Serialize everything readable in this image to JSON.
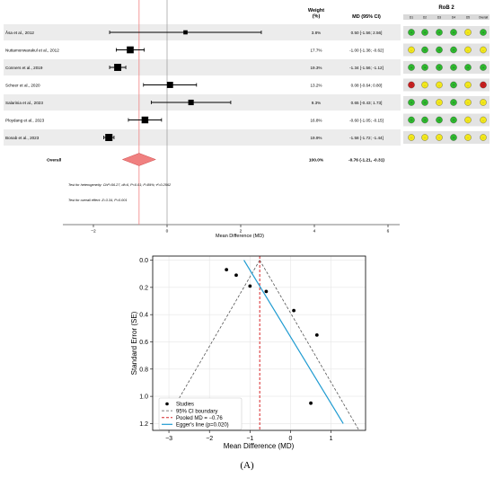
{
  "chart_data": [
    {
      "type": "forest",
      "columns": {
        "weight": "Weight\n(%)",
        "md": "MD (95% CI)",
        "rob": "RoB 2"
      },
      "rob_domains": [
        "D1",
        "D2",
        "D3",
        "D4",
        "D5",
        "Overall"
      ],
      "studies": [
        {
          "label": "Åsa et al., 2012",
          "md": 0.5,
          "lo": -1.56,
          "hi": 2.56,
          "weight": 3.8,
          "weight_text": "3.8%",
          "ci_text": "0.50 [-1.56; 2.56]",
          "rob": [
            "low",
            "low",
            "low",
            "low",
            "some",
            "low"
          ]
        },
        {
          "label": "Nuttamonwarakul et al., 2012",
          "md": -1.0,
          "lo": -1.38,
          "hi": -0.62,
          "weight": 17.7,
          "weight_text": "17.7%",
          "ci_text": "-1.00 [-1.38; -0.62]",
          "rob": [
            "some",
            "low",
            "low",
            "low",
            "some",
            "some"
          ]
        },
        {
          "label": "Conners et al., 2019",
          "md": -1.34,
          "lo": -1.56,
          "hi": -1.12,
          "weight": 19.3,
          "weight_text": "19.3%",
          "ci_text": "-1.34 [-1.56; -1.12]",
          "rob": [
            "low",
            "low",
            "low",
            "low",
            "low",
            "low"
          ]
        },
        {
          "label": "Scheer et al., 2020",
          "md": 0.08,
          "lo": -0.64,
          "hi": 0.8,
          "weight": 13.2,
          "weight_text": "13.2%",
          "ci_text": "0.08 [-0.64; 0.80]",
          "rob": [
            "high",
            "some",
            "some",
            "low",
            "some",
            "high"
          ]
        },
        {
          "label": "Salarinia et al., 2023",
          "md": 0.65,
          "lo": -0.43,
          "hi": 1.73,
          "weight": 9.3,
          "weight_text": "9.3%",
          "ci_text": "0.65 [-0.43; 1.73]",
          "rob": [
            "low",
            "low",
            "some",
            "low",
            "some",
            "some"
          ]
        },
        {
          "label": "Ploydang et al., 2023",
          "md": -0.6,
          "lo": -1.05,
          "hi": -0.15,
          "weight": 16.8,
          "weight_text": "16.8%",
          "ci_text": "-0.60 [-1.05; -0.15]",
          "rob": [
            "low",
            "low",
            "low",
            "low",
            "some",
            "some"
          ]
        },
        {
          "label": "Bonab et al., 2023",
          "md": -1.58,
          "lo": -1.72,
          "hi": -1.44,
          "weight": 19.9,
          "weight_text": "19.9%",
          "ci_text": "-1.58 [-1.72; -1.44]",
          "rob": [
            "some",
            "some",
            "some",
            "low",
            "some",
            "some"
          ]
        }
      ],
      "overall": {
        "label": "Overall",
        "md": -0.76,
        "lo": -1.21,
        "hi": -0.31,
        "weight_text": "100.0%",
        "ci_text": "-0.76 (-1.21, -0.31)"
      },
      "notes": [
        "Test for heterogeneity: Chi²=56.27, df=6, P<0.01; I²=89%; τ²=0.2562",
        "Test for overall effect: Z=3.34, P=0.001"
      ],
      "xlabel": "Mean Difference (MD)",
      "xlim": [
        -3,
        7
      ],
      "xticks": [
        -2,
        0,
        2,
        4,
        6
      ],
      "xtick_labels": [
        "−2",
        "0",
        "2",
        "4",
        "6"
      ],
      "colors": {
        "ci": "#000000",
        "square": "#000000",
        "diamond": "#f08080",
        "diamond_edge": "#d04a4a",
        "null_line": "#999999",
        "pooled_line": "#f08080",
        "stripe": "#ececec",
        "low": "#2db82d",
        "some": "#f2e71a",
        "high": "#c81e1e"
      }
    },
    {
      "type": "scatter",
      "subtype": "funnel",
      "points": [
        {
          "x": -1.58,
          "y": 0.07
        },
        {
          "x": -1.34,
          "y": 0.11
        },
        {
          "x": -1.0,
          "y": 0.19
        },
        {
          "x": -0.6,
          "y": 0.23
        },
        {
          "x": 0.08,
          "y": 0.37
        },
        {
          "x": 0.65,
          "y": 0.55
        },
        {
          "x": 0.5,
          "y": 1.05
        }
      ],
      "pooled_md": -0.76,
      "ci_apex": [
        -0.76,
        0.0
      ],
      "ci_base_y": 1.25,
      "egger_line": [
        {
          "x": -1.15,
          "y": 0.0
        },
        {
          "x": 1.3,
          "y": 1.2
        }
      ],
      "xlabel": "Mean Difference (MD)",
      "ylabel": "Standard Error (SE)",
      "xlim": [
        -3.4,
        1.85
      ],
      "ylim": [
        1.25,
        -0.03
      ],
      "xticks": [
        -3,
        -2,
        -1,
        0,
        1
      ],
      "xtick_labels": [
        "−3",
        "−2",
        "−1",
        "0",
        "1"
      ],
      "yticks": [
        0.0,
        0.2,
        0.4,
        0.6,
        0.8,
        1.0,
        1.2
      ],
      "ytick_labels": [
        "0.0",
        "0.2",
        "0.4",
        "0.6",
        "0.8",
        "1.0",
        "1.2"
      ],
      "grid": true,
      "legend_position": "bottom-left",
      "legend": [
        {
          "key": "studies",
          "label": "Studies"
        },
        {
          "key": "ci",
          "label": "95% CI boundary"
        },
        {
          "key": "pooled",
          "label": "Pooled MD = −0.76"
        },
        {
          "key": "egger",
          "label": "Egger's line (p=0.020)"
        }
      ],
      "colors": {
        "points": "#000000",
        "ci": "#555555",
        "pooled": "#d62728",
        "egger": "#1f9bd1",
        "grid": "#e6e6e6"
      }
    }
  ],
  "caption": "(A)"
}
